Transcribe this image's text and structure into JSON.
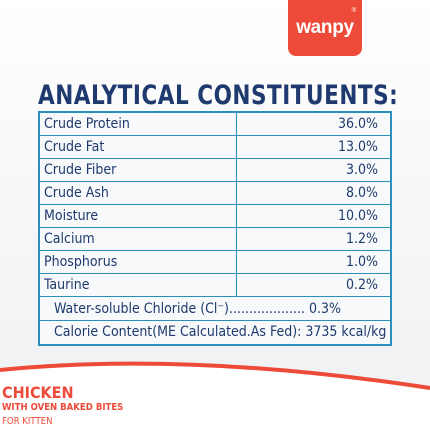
{
  "brand": {
    "logo_text": "wanpy",
    "registered": "®",
    "accent": "#ee4a39"
  },
  "heading": "ANALYTICAL CONSTITUENTS:",
  "table": {
    "rows": [
      {
        "label": "Crude Protein",
        "value": "36.0%"
      },
      {
        "label": "Crude Fat",
        "value": "13.0%"
      },
      {
        "label": "Crude Fiber",
        "value": "3.0%"
      },
      {
        "label": "Crude Ash",
        "value": "8.0%"
      },
      {
        "label": "Moisture",
        "value": "10.0%"
      },
      {
        "label": "Calcium",
        "value": "1.2%"
      },
      {
        "label": "Phosphorus",
        "value": "1.0%"
      },
      {
        "label": "Taurine",
        "value": "0.2%"
      }
    ],
    "chloride": "Water-soluble Chloride (Cl⁻)................... 0.3%",
    "calorie": "Calorie Content(ME Calculated.As Fed): 3735 kcal/kg"
  },
  "product": {
    "title": "CHICKEN",
    "subtitle": "WITH OVEN BAKED BITES",
    "for": "FOR KITTEN"
  },
  "colors": {
    "navy": "#1f3a6e",
    "border": "#2a8fbd",
    "orange": "#ee4a39"
  }
}
